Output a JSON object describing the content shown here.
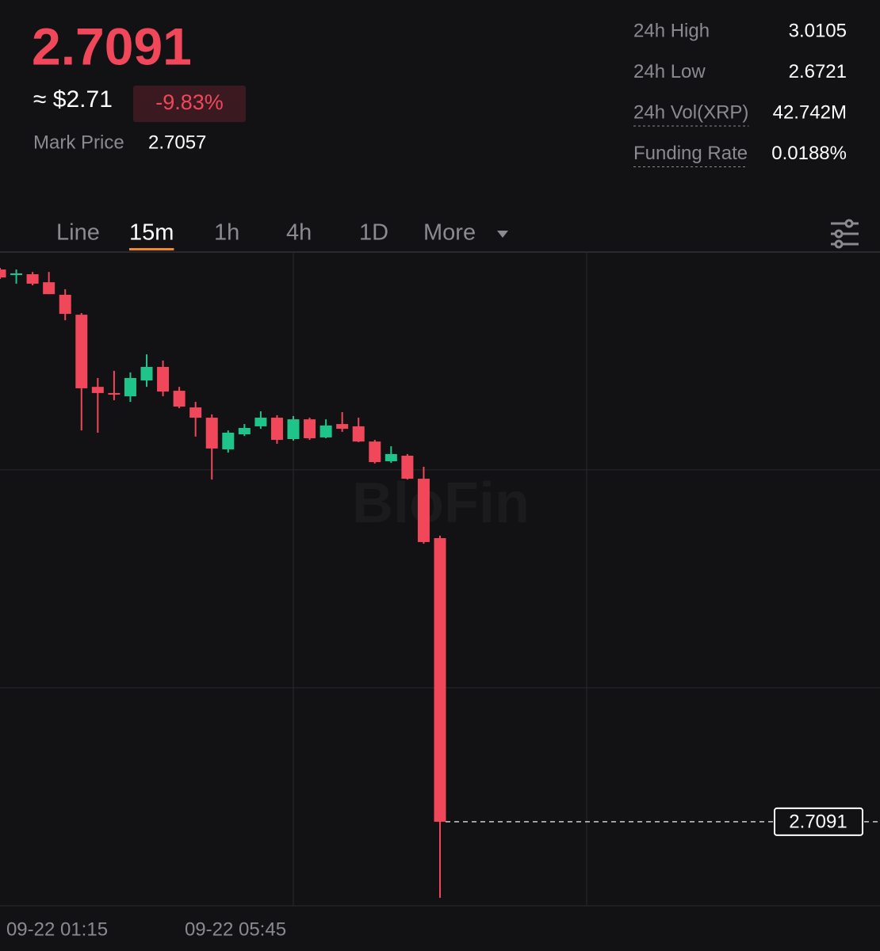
{
  "header": {
    "price": "2.7091",
    "usd_price": "≈ $2.71",
    "change": "-9.83%",
    "mark_price_label": "Mark Price",
    "mark_price": "2.7057"
  },
  "stats": [
    {
      "label": "24h High",
      "value": "3.0105"
    },
    {
      "label": "24h Low",
      "value": "2.6721"
    },
    {
      "label": "24h Vol(XRP)",
      "value": "42.742M"
    },
    {
      "label": "Funding Rate",
      "value": "0.0188%"
    }
  ],
  "tabs": {
    "items": [
      "Line",
      "15m",
      "1h",
      "4h",
      "1D",
      "More"
    ],
    "active": 1
  },
  "chart_data": {
    "type": "candlestick",
    "watermark": "BloFin",
    "up_color": "#1fc48a",
    "down_color": "#f0475a",
    "ylim": [
      2.6682,
      2.9863
    ],
    "ygrid": [
      2.8803,
      2.7743
    ],
    "x_labels": [
      "09-22 01:15",
      "09-22 05:45"
    ],
    "last_price": 2.7091,
    "candles": [
      {
        "o": 2.9778,
        "h": 2.9786,
        "l": 2.9732,
        "c": 2.9739
      },
      {
        "o": 2.9751,
        "h": 2.9778,
        "l": 2.9709,
        "c": 2.9759
      },
      {
        "o": 2.9755,
        "h": 2.9766,
        "l": 2.9701,
        "c": 2.9709
      },
      {
        "o": 2.9716,
        "h": 2.9766,
        "l": 2.9658,
        "c": 2.9658
      },
      {
        "o": 2.9655,
        "h": 2.9682,
        "l": 2.9531,
        "c": 2.9562
      },
      {
        "o": 2.9558,
        "h": 2.9566,
        "l": 2.8995,
        "c": 2.92
      },
      {
        "o": 2.9207,
        "h": 2.925,
        "l": 2.8984,
        "c": 2.9177
      },
      {
        "o": 2.9177,
        "h": 2.9285,
        "l": 2.9142,
        "c": 2.9169
      },
      {
        "o": 2.9161,
        "h": 2.9277,
        "l": 2.9134,
        "c": 2.925
      },
      {
        "o": 2.9238,
        "h": 2.9365,
        "l": 2.9207,
        "c": 2.9304
      },
      {
        "o": 2.9304,
        "h": 2.9335,
        "l": 2.9161,
        "c": 2.9184
      },
      {
        "o": 2.9188,
        "h": 2.9207,
        "l": 2.9103,
        "c": 2.9111
      },
      {
        "o": 2.9107,
        "h": 2.9134,
        "l": 2.8965,
        "c": 2.9057
      },
      {
        "o": 2.9057,
        "h": 2.9073,
        "l": 2.8756,
        "c": 2.8907
      },
      {
        "o": 2.8903,
        "h": 2.8995,
        "l": 2.8887,
        "c": 2.8984
      },
      {
        "o": 2.8976,
        "h": 2.9026,
        "l": 2.8968,
        "c": 2.9007
      },
      {
        "o": 2.9015,
        "h": 2.9088,
        "l": 2.9003,
        "c": 2.9057
      },
      {
        "o": 2.9057,
        "h": 2.9069,
        "l": 2.893,
        "c": 2.8949
      },
      {
        "o": 2.8953,
        "h": 2.9065,
        "l": 2.8945,
        "c": 2.9049
      },
      {
        "o": 2.9049,
        "h": 2.9057,
        "l": 2.8949,
        "c": 2.8957
      },
      {
        "o": 2.8961,
        "h": 2.9049,
        "l": 2.8957,
        "c": 2.9019
      },
      {
        "o": 2.9026,
        "h": 2.9084,
        "l": 2.8988,
        "c": 2.9003
      },
      {
        "o": 2.9015,
        "h": 2.9057,
        "l": 2.8938,
        "c": 2.8941
      },
      {
        "o": 2.8941,
        "h": 2.8949,
        "l": 2.8834,
        "c": 2.8841
      },
      {
        "o": 2.8845,
        "h": 2.8918,
        "l": 2.8837,
        "c": 2.888
      },
      {
        "o": 2.8872,
        "h": 2.888,
        "l": 2.8756,
        "c": 2.876
      },
      {
        "o": 2.876,
        "h": 2.8818,
        "l": 2.8444,
        "c": 2.8452
      },
      {
        "o": 2.8471,
        "h": 2.8483,
        "l": 2.6721,
        "c": 2.7091
      }
    ]
  }
}
